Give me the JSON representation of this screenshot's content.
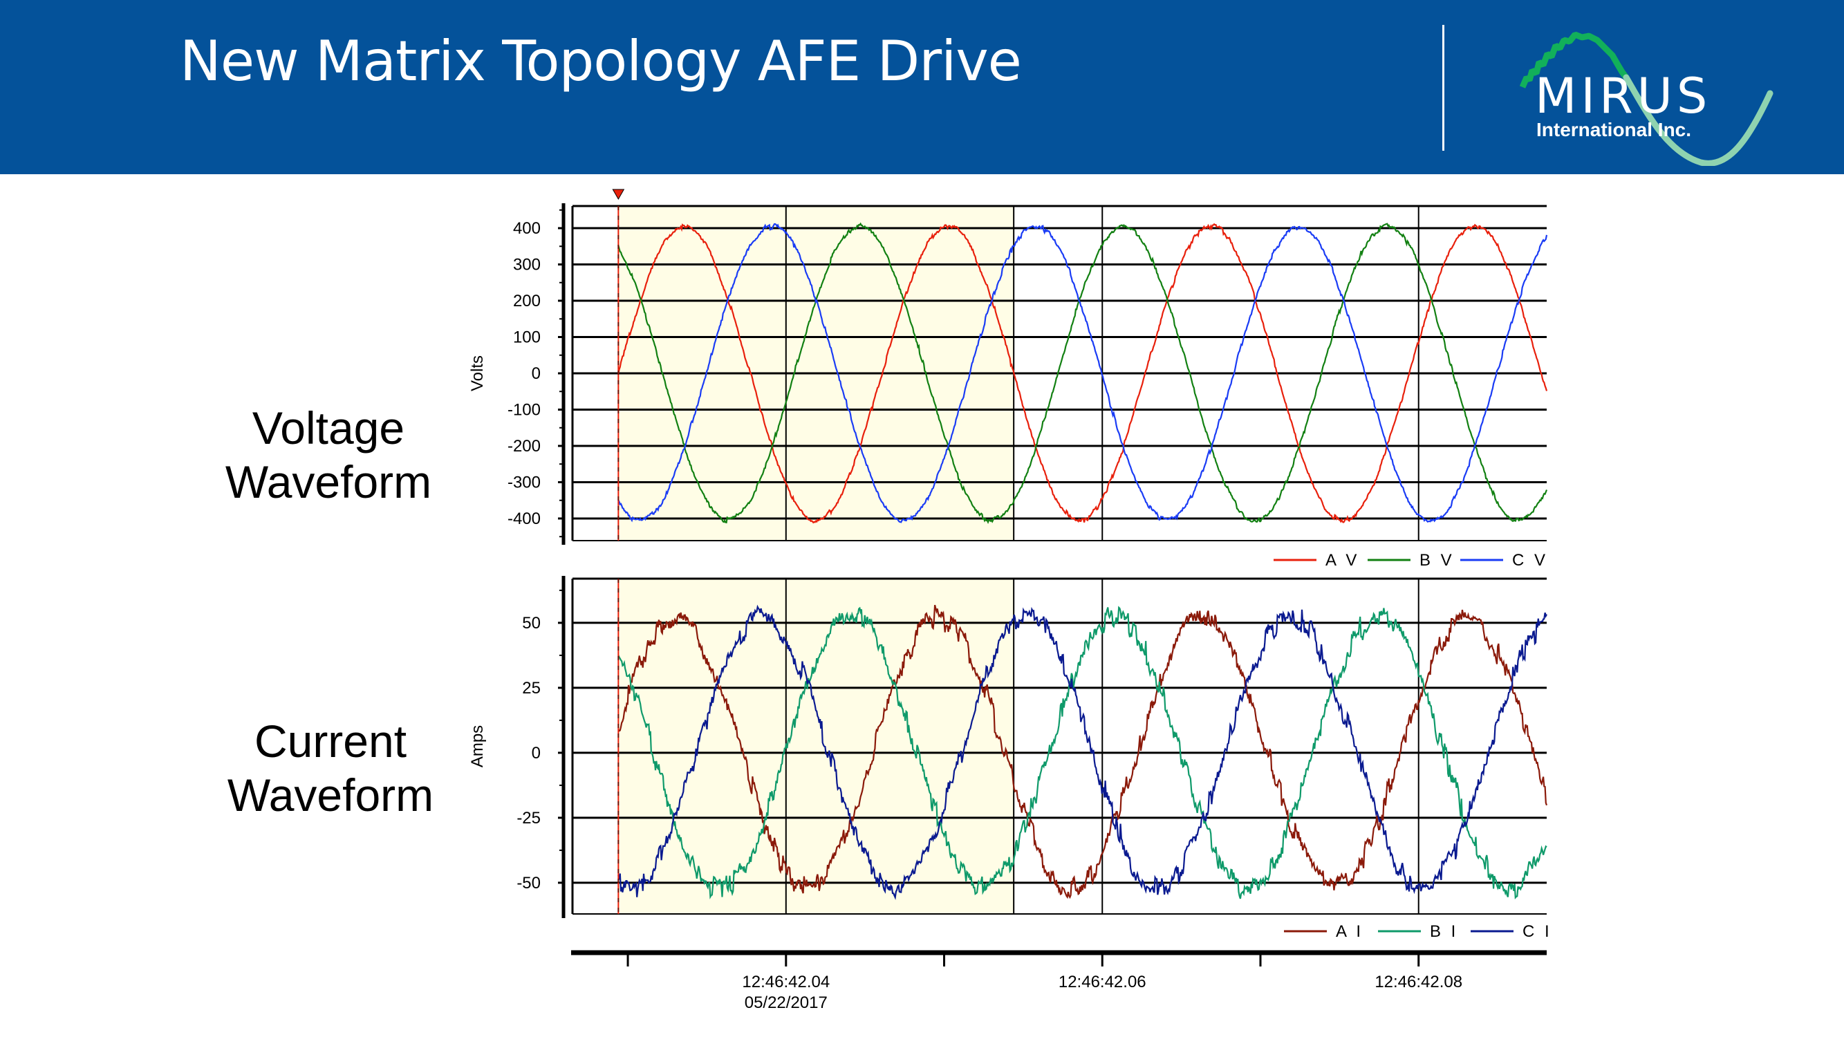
{
  "header": {
    "title": "New Matrix Topology AFE Drive",
    "logo_text": "MIRUS",
    "logo_subtext": "International Inc."
  },
  "labels": {
    "voltage": "Voltage Waveform",
    "current": "Current Waveform"
  },
  "colors": {
    "header_bg": "#04529a",
    "highlight_bg": "#fffde6",
    "cursor": "#e8200c"
  },
  "chart_data": [
    {
      "type": "line",
      "title": "",
      "ylabel": "Volts",
      "xlabel": "",
      "x_unit": "seconds after 12:46:42",
      "xlim": [
        0.0265,
        0.0881
      ],
      "ylim": [
        -461,
        461
      ],
      "yticks": [
        400,
        300,
        200,
        100,
        0,
        -100,
        -200,
        -300,
        -400
      ],
      "ytick_labels": [
        "400",
        "300",
        "200",
        "100",
        "0",
        "-100",
        "-200",
        "-300",
        "-400"
      ],
      "grid": true,
      "legend_position": "bottom-right",
      "cursor_x": 0.0294,
      "highlight_range": [
        0.0294,
        0.0544
      ],
      "series": [
        {
          "name": "A V",
          "color": "#e8200c",
          "frequency_hz": 60,
          "amplitude": 405,
          "phase_deg": 0,
          "noise": 6
        },
        {
          "name": "B V",
          "color": "#128012",
          "frequency_hz": 60,
          "amplitude": 405,
          "phase_deg": 120,
          "noise": 6
        },
        {
          "name": "C V",
          "color": "#1a3cf5",
          "frequency_hz": 60,
          "amplitude": 405,
          "phase_deg": -120,
          "noise": 6
        }
      ]
    },
    {
      "type": "line",
      "title": "",
      "ylabel": "Amps",
      "xlabel": "",
      "x_unit": "seconds after 12:46:42",
      "xlim": [
        0.0265,
        0.0881
      ],
      "ylim": [
        -62,
        67
      ],
      "yticks": [
        50,
        25,
        0,
        -25,
        -50
      ],
      "ytick_labels": [
        "50",
        "25",
        "0",
        "-25",
        "-50"
      ],
      "grid": true,
      "legend_position": "bottom-right",
      "cursor_x": 0.0294,
      "highlight_range": [
        0.0294,
        0.0544
      ],
      "series": [
        {
          "name": "A I",
          "color": "#8b1a0a",
          "frequency_hz": 60,
          "amplitude": 52,
          "phase_deg": 12,
          "noise": 3.5
        },
        {
          "name": "B I",
          "color": "#0f9a6a",
          "frequency_hz": 60,
          "amplitude": 52,
          "phase_deg": 132,
          "noise": 3.5
        },
        {
          "name": "C I",
          "color": "#0a1a90",
          "frequency_hz": 60,
          "amplitude": 52,
          "phase_deg": -108,
          "noise": 3.5
        }
      ]
    }
  ],
  "time_axis": {
    "ticks": [
      0.03,
      0.04,
      0.05,
      0.06,
      0.07,
      0.08
    ],
    "labels": [
      {
        "t": 0.04,
        "time": "12:46:42.04",
        "date": "05/22/2017"
      },
      {
        "t": 0.06,
        "time": "12:46:42.06",
        "date": ""
      },
      {
        "t": 0.08,
        "time": "12:46:42.08",
        "date": ""
      }
    ]
  }
}
